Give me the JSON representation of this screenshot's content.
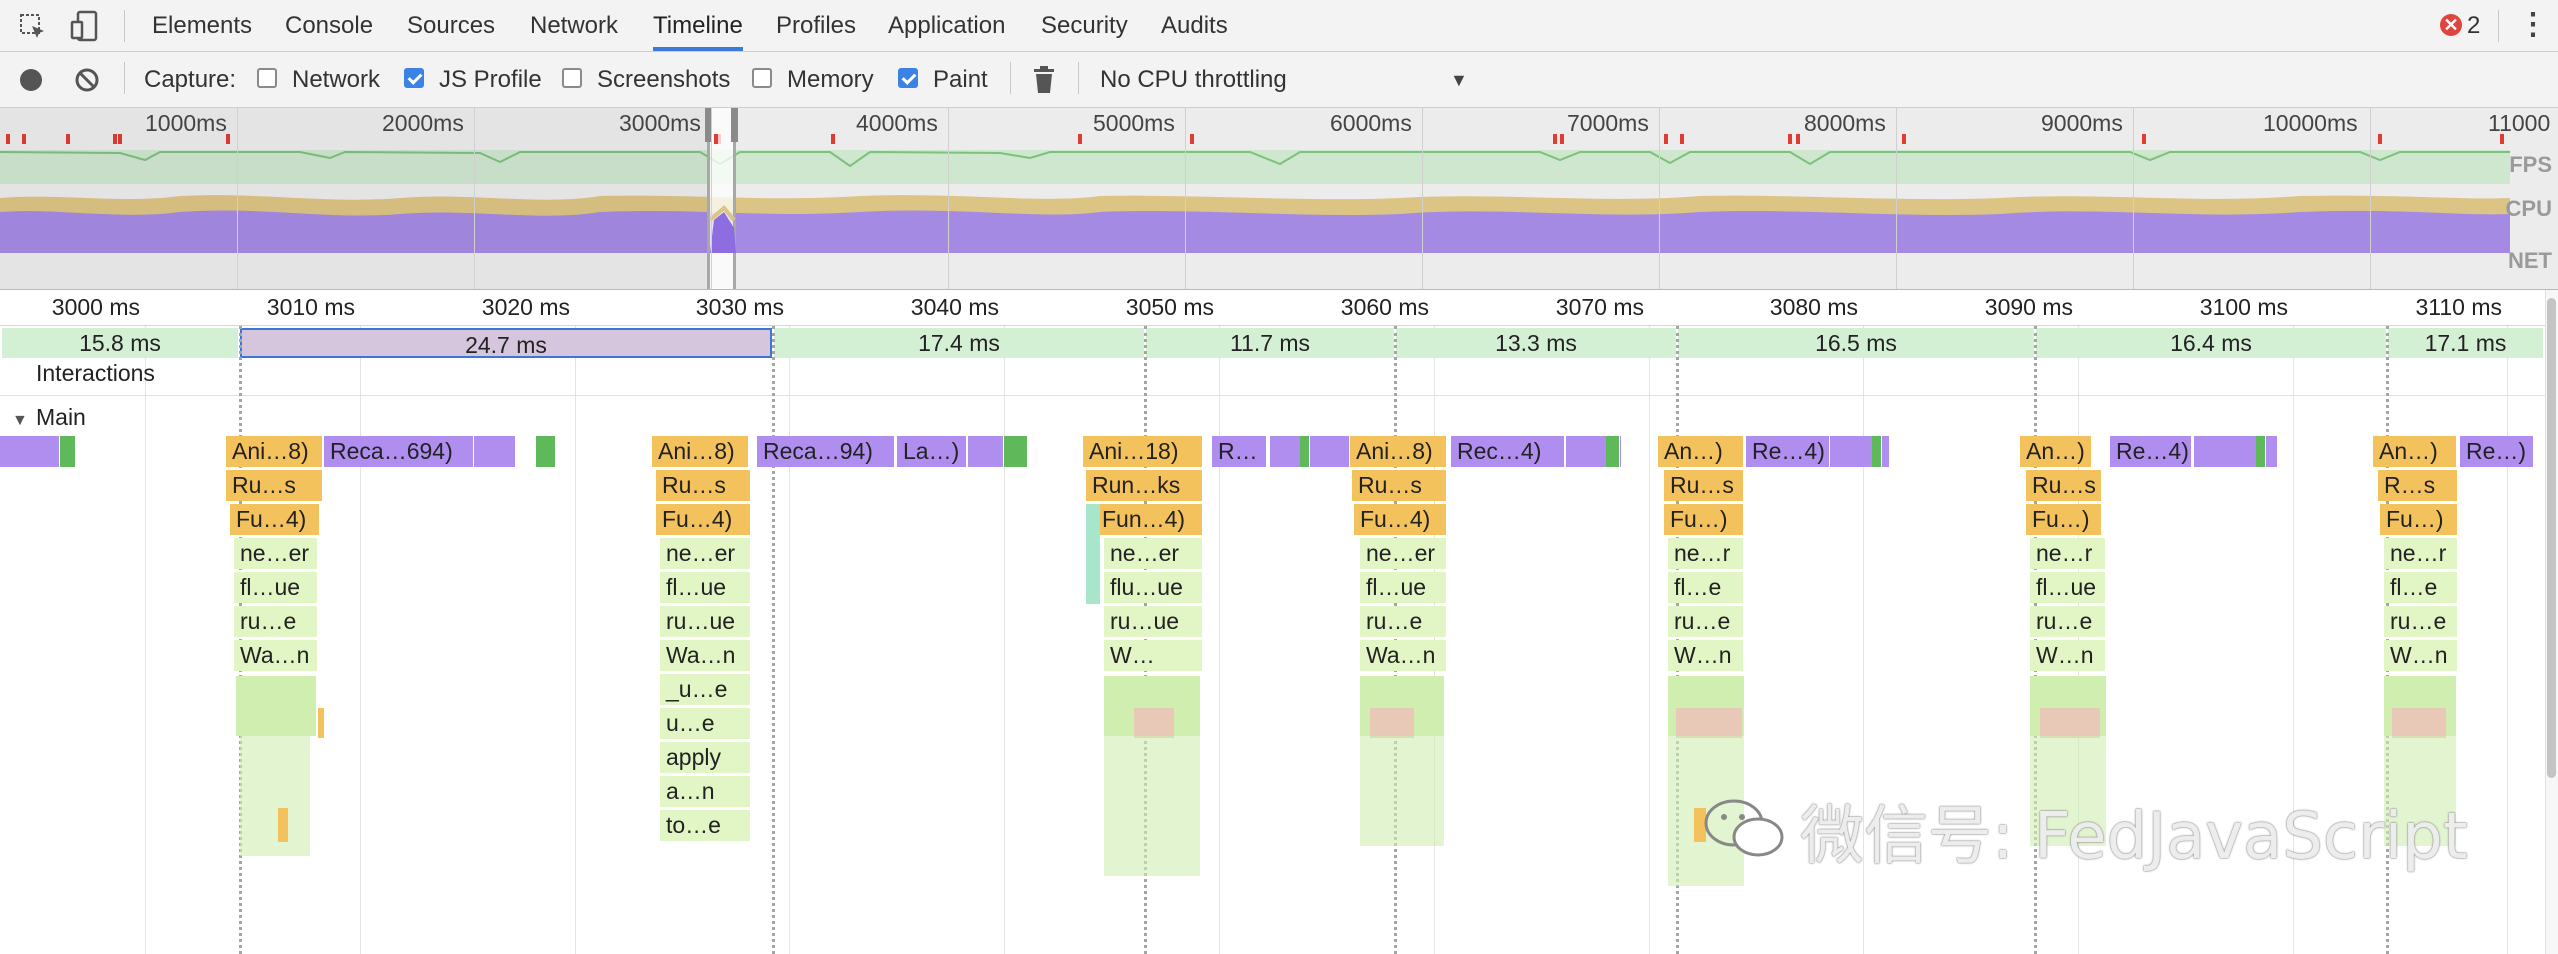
{
  "tabs": [
    "Elements",
    "Console",
    "Sources",
    "Network",
    "Timeline",
    "Profiles",
    "Application",
    "Security",
    "Audits"
  ],
  "error_count": "2",
  "toolbar": {
    "capture_label": "Capture:",
    "network_label": "Network",
    "network_checked": false,
    "js_profile_label": "JS Profile",
    "js_profile_checked": true,
    "screenshots_label": "Screenshots",
    "screenshots_checked": false,
    "memory_label": "Memory",
    "memory_checked": false,
    "paint_label": "Paint",
    "paint_checked": true,
    "throttling": "No CPU throttling"
  },
  "overview": {
    "ticks": [
      "1000ms",
      "2000ms",
      "3000ms",
      "4000ms",
      "5000ms",
      "6000ms",
      "7000ms",
      "8000ms",
      "9000ms",
      "10000ms",
      "11000"
    ],
    "rows": [
      "FPS",
      "CPU",
      "NET"
    ]
  },
  "ruler": [
    "3000 ms",
    "3010 ms",
    "3020 ms",
    "3030 ms",
    "3040 ms",
    "3050 ms",
    "3060 ms",
    "3070 ms",
    "3080 ms",
    "3090 ms",
    "3100 ms",
    "3110 ms"
  ],
  "frames": [
    "15.8 ms",
    "24.7 ms",
    "17.4 ms",
    "11.7 ms",
    "13.3 ms",
    "16.5 ms",
    "16.4 ms",
    "17.1 ms"
  ],
  "interactions_label": "Interactions",
  "main_label": "Main",
  "flame": {
    "g1": {
      "top": [
        "Ani…8)",
        "Reca…694)"
      ],
      "stack": [
        "Ru…s",
        "Fu…4)",
        "ne…er",
        "fl…ue",
        "ru…e",
        "Wa…n"
      ]
    },
    "g2": {
      "top": [
        "Ani…8)",
        "Reca…94)",
        "La…)"
      ],
      "stack": [
        "Ru…s",
        "Fu…4)",
        "ne…er",
        "fl…ue",
        "ru…ue",
        "Wa…n",
        "_u…e",
        "u…e",
        "apply",
        "a…n",
        "to…e"
      ]
    },
    "g3": {
      "top": [
        "Ani…18)",
        "R…"
      ],
      "stack": [
        "Run…ks",
        "Fun…4)",
        "ne…er",
        "flu…ue",
        "ru…ue",
        "W…"
      ]
    },
    "g4": {
      "top": [
        "Ani…8)",
        "Rec…4)"
      ],
      "stack": [
        "Ru…s",
        "Fu…4)",
        "ne…er",
        "fl…ue",
        "ru…e",
        "Wa…n"
      ]
    },
    "g5": {
      "top": [
        "An…)",
        "Re…4)"
      ],
      "stack": [
        "Ru…s",
        "Fu…)",
        "ne…r",
        "fl…e",
        "ru…e",
        "W…n"
      ]
    },
    "g6": {
      "top": [
        "An…)",
        "Re…4)"
      ],
      "stack": [
        "Ru…s",
        "Fu…)",
        "ne…r",
        "fl…ue",
        "ru…e",
        "W…n"
      ]
    },
    "g7": {
      "top": [
        "An…)",
        "Re…)"
      ],
      "stack": [
        "R…s",
        "Fu…)",
        "ne…r",
        "fl…e",
        "ru…e",
        "W…n"
      ]
    }
  },
  "watermark": "微信号: FedJavaScript",
  "colors": {
    "accent": "#3879d9",
    "scripting": "#f4c25c",
    "rendering": "#b08ef0",
    "painting": "#5fb85a",
    "frame": "#d4f0d4"
  }
}
